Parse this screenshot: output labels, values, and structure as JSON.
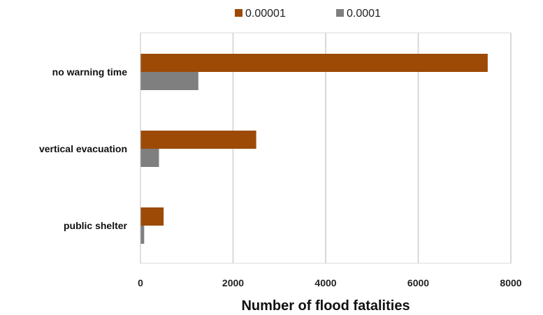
{
  "chart_data": {
    "type": "bar",
    "orientation": "horizontal",
    "categories": [
      "no warning time",
      "vertical evacuation",
      "public shelter"
    ],
    "series": [
      {
        "name": "0.00001",
        "color": "#9C4A06",
        "values": [
          7500,
          2500,
          500
        ]
      },
      {
        "name": "0.0001",
        "color": "#7F7F7F",
        "values": [
          1250,
          400,
          80
        ]
      }
    ],
    "xlabel": "Number of flood fatalities",
    "ylabel": "",
    "xlim": [
      0,
      8000
    ],
    "xticks": [
      0,
      2000,
      4000,
      6000,
      8000
    ],
    "xtick_labels": [
      "0",
      "2000",
      "4000",
      "6000",
      "8000"
    ],
    "grid": "vertical",
    "legend_position": "top"
  }
}
